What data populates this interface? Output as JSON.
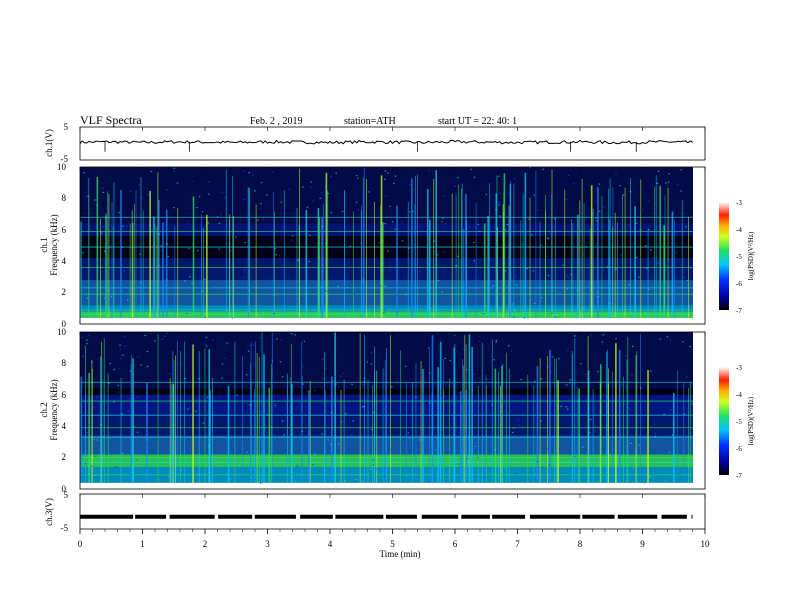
{
  "header": {
    "title": "VLF  Spectra",
    "date": "Feb. 2  , 2019",
    "station": "station=ATH",
    "start": "start  UT  =   22: 40: 1"
  },
  "colors": {
    "spec_bg": "#000010",
    "blue": "#1a3cff",
    "cyan": "#20d4e0",
    "green": "#30e060"
  },
  "chart_data": [
    {
      "type": "line",
      "name": "ch1-waveform",
      "ylabel": "ch.1(V)",
      "ylim": [
        -5,
        5
      ],
      "yticks": [
        "5",
        "-5"
      ],
      "xlim": [
        0,
        10
      ],
      "x": [
        0,
        0.5,
        1,
        1.5,
        2,
        2.5,
        3,
        3.5,
        4,
        4.5,
        5,
        5.5,
        6,
        6.5,
        7,
        7.5,
        8,
        8.5,
        9,
        9.5,
        9.8
      ],
      "y": [
        0.4,
        0.5,
        0.3,
        0.5,
        0.4,
        0.3,
        0.5,
        0.4,
        0.3,
        0.5,
        0.4,
        0.3,
        0.5,
        0.4,
        0.3,
        0.4,
        0.5,
        0.3,
        0.4,
        0.5,
        0.3
      ]
    },
    {
      "type": "heatmap",
      "name": "ch1-spectrogram",
      "ylabel_lines": [
        "ch.1",
        "Frequency (kHz)"
      ],
      "ylim": [
        0,
        10
      ],
      "yticks": [
        "0",
        "2",
        "4",
        "6",
        "8",
        "10"
      ],
      "xlim": [
        0,
        10
      ],
      "colorbar": {
        "label": "log(PSD)(V²/Hz)",
        "ticks": [
          "-3",
          "-4",
          "-5",
          "-6",
          "-7"
        ],
        "range": [
          -7,
          -3
        ]
      }
    },
    {
      "type": "heatmap",
      "name": "ch2-spectrogram",
      "ylabel_lines": [
        "ch.2",
        "Frequency (kHz)"
      ],
      "ylim": [
        0,
        10
      ],
      "yticks": [
        "0",
        "2",
        "4",
        "6",
        "8",
        "10"
      ],
      "xlim": [
        0,
        10
      ],
      "colorbar": {
        "label": "log(PSD)(V²/Hz)",
        "ticks": [
          "-3",
          "-4",
          "-5",
          "-6",
          "-7"
        ],
        "range": [
          -7,
          -3
        ]
      }
    },
    {
      "type": "line",
      "name": "ch3-waveform",
      "ylabel": "ch.3(V)",
      "ylim": [
        -5,
        5
      ],
      "yticks": [
        "5",
        "-5"
      ],
      "xlim": [
        0,
        10
      ],
      "x": [
        0,
        9.8
      ],
      "y": [
        -1.5,
        -1.5
      ]
    }
  ],
  "xaxis": {
    "label": "Time  (min)",
    "ticks": [
      "0",
      "1",
      "2",
      "3",
      "4",
      "5",
      "6",
      "7",
      "8",
      "9",
      "10"
    ]
  }
}
